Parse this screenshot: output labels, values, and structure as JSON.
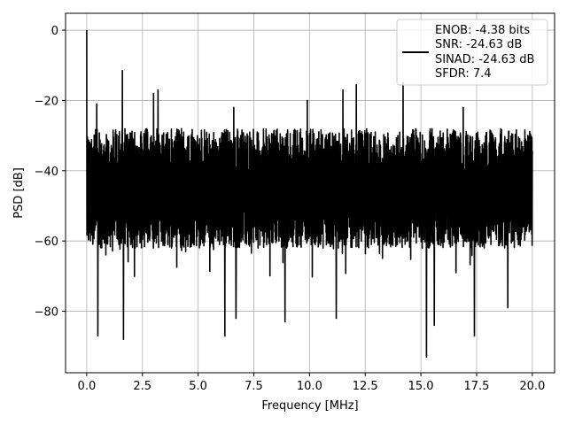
{
  "chart_data": {
    "type": "line",
    "xlabel": "Frequency [MHz]",
    "ylabel": "PSD [dB]",
    "xlim": [
      -0.95,
      21.0
    ],
    "ylim": [
      -97.5,
      4.8
    ],
    "xticks": [
      {
        "value": 0.0,
        "label": "0.0"
      },
      {
        "value": 2.5,
        "label": "2.5"
      },
      {
        "value": 5.0,
        "label": "5.0"
      },
      {
        "value": 7.5,
        "label": "7.5"
      },
      {
        "value": 10.0,
        "label": "10.0"
      },
      {
        "value": 12.5,
        "label": "12.5"
      },
      {
        "value": 15.0,
        "label": "15.0"
      },
      {
        "value": 17.5,
        "label": "17.5"
      },
      {
        "value": 20.0,
        "label": "20.0"
      }
    ],
    "yticks": [
      {
        "value": 0,
        "label": "0"
      },
      {
        "value": -20,
        "label": "−20"
      },
      {
        "value": -40,
        "label": "−40"
      },
      {
        "value": -60,
        "label": "−60"
      },
      {
        "value": -80,
        "label": "−80"
      }
    ],
    "grid": true,
    "legend_position": "top-right",
    "line_color": "#000000",
    "x_range": [
      0.0,
      20.0
    ],
    "noise_floor": {
      "upper_envelope_db": -28,
      "lower_envelope_db": -62
    },
    "peaks": [
      {
        "x": 0.0,
        "y": 0.0
      },
      {
        "x": 1.6,
        "y": -11.5
      },
      {
        "x": 0.45,
        "y": -21
      },
      {
        "x": 3.0,
        "y": -18
      },
      {
        "x": 3.2,
        "y": -17
      },
      {
        "x": 6.6,
        "y": -22
      },
      {
        "x": 9.9,
        "y": -20
      },
      {
        "x": 11.5,
        "y": -17
      },
      {
        "x": 12.1,
        "y": -15.5
      },
      {
        "x": 14.2,
        "y": -15
      },
      {
        "x": 16.9,
        "y": -22
      }
    ],
    "dips": [
      {
        "x": 0.5,
        "y": -87
      },
      {
        "x": 1.65,
        "y": -88
      },
      {
        "x": 6.2,
        "y": -87
      },
      {
        "x": 6.7,
        "y": -82
      },
      {
        "x": 8.9,
        "y": -83
      },
      {
        "x": 11.2,
        "y": -82
      },
      {
        "x": 15.25,
        "y": -93
      },
      {
        "x": 15.6,
        "y": -84
      },
      {
        "x": 17.4,
        "y": -87
      },
      {
        "x": 18.9,
        "y": -79
      }
    ],
    "legend": {
      "lines": [
        "ENOB: -4.38 bits",
        "SNR: -24.63 dB",
        "SINAD: -24.63 dB",
        "SFDR: 7.4"
      ]
    }
  }
}
